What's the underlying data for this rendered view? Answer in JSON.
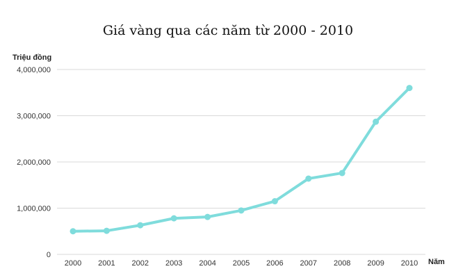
{
  "chart_data": {
    "type": "line",
    "title": "Giá vàng qua các năm từ 2000 - 2010",
    "ylabel": "Triệu đồng",
    "xlabel": "Năm",
    "categories": [
      "2000",
      "2001",
      "2002",
      "2003",
      "2004",
      "2005",
      "2006",
      "2007",
      "2008",
      "2009",
      "2010"
    ],
    "series": [
      {
        "values": [
          500000,
          510000,
          630000,
          780000,
          810000,
          950000,
          1150000,
          1640000,
          1760000,
          2870000,
          3600000
        ],
        "color": "#7fdcdc"
      }
    ],
    "ylim": [
      0,
      4000000
    ],
    "yticks": [
      0,
      1000000,
      2000000,
      3000000,
      4000000
    ],
    "ytick_labels": [
      "0",
      "1,000,000",
      "2,000,000",
      "3,000,000",
      "4,000,000"
    ],
    "grid": true,
    "legend": "none"
  }
}
